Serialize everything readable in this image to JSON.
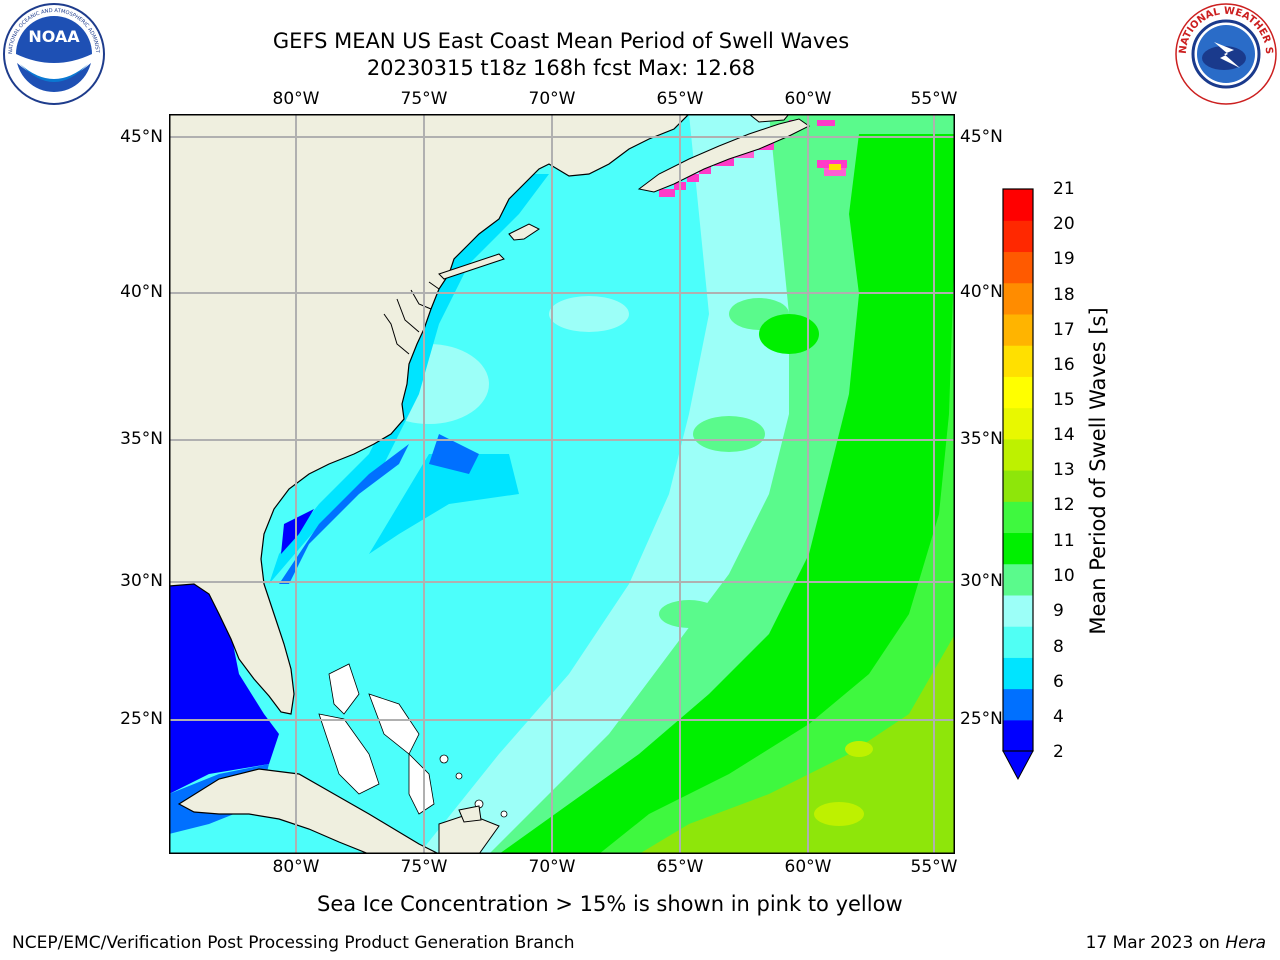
{
  "header": {
    "title_line1": "GEFS MEAN US East Coast Mean Period of Swell Waves",
    "title_line2": "20230315 t18z 168h fcst   Max: 12.68"
  },
  "logos": {
    "noaa": {
      "text": "NOAA",
      "ring_text": "NATIONAL OCEANIC AND ATMOSPHERIC ADMINISTRATION · U.S. DEPARTMENT OF COMMERCE"
    },
    "nws": {
      "ring_text": "NATIONAL WEATHER SERVICE"
    }
  },
  "map": {
    "lon_ticks": [
      "80°W",
      "75°W",
      "70°W",
      "65°W",
      "60°W",
      "55°W"
    ],
    "lat_ticks": [
      "45°N",
      "40°N",
      "35°N",
      "30°N",
      "25°N"
    ],
    "colors": {
      "land": "#efefdf",
      "ocean_default": "#4cfffb",
      "gridline": "#b0b0b0"
    }
  },
  "colorbar": {
    "label": "Mean Period of Swell Waves [s]",
    "ticks": [
      "21",
      "20",
      "19",
      "18",
      "17",
      "16",
      "15",
      "14",
      "13",
      "12",
      "11",
      "10",
      "9",
      "8",
      "6",
      "4",
      "2"
    ],
    "colors": [
      "#0000ff",
      "#0070ff",
      "#00e4ff",
      "#50fff4",
      "#9cfff8",
      "#5afa8c",
      "#00f000",
      "#3ff83f",
      "#8ee60a",
      "#bef100",
      "#e8f800",
      "#ffff00",
      "#ffe000",
      "#ffb400",
      "#ff8c00",
      "#ff5a00",
      "#ff2800",
      "#ff0000"
    ]
  },
  "note": "Sea Ice Concentration > 15% is shown in pink to yellow",
  "footer": {
    "left": "NCEP/EMC/Verification Post Processing Product Generation Branch",
    "date": "17 Mar 2023 on",
    "host": "Hera"
  }
}
